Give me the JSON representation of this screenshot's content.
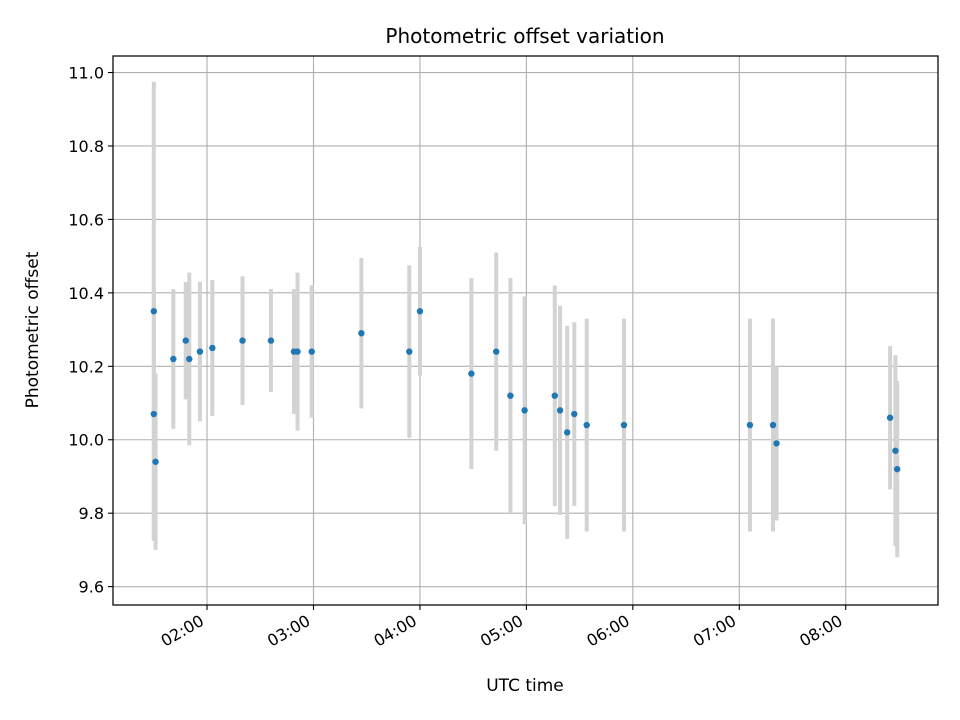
{
  "chart_data": {
    "type": "scatter",
    "title": "Photometric offset variation",
    "xlabel": "UTC time",
    "ylabel": "Photometric offset",
    "xlim": [
      "01:07",
      "08:52"
    ],
    "ylim": [
      9.55,
      11.045
    ],
    "x_ticks": [
      "02:00",
      "03:00",
      "04:00",
      "05:00",
      "06:00",
      "07:00",
      "08:00"
    ],
    "y_ticks": [
      "9.6",
      "9.8",
      "10.0",
      "10.2",
      "10.4",
      "10.6",
      "10.8",
      "11.0"
    ],
    "grid": true,
    "colors": {
      "marker": "#1f77b4",
      "errorbar": "#d3d3d3",
      "grid": "#b0b0b0"
    },
    "points": [
      {
        "x": "01:30",
        "y": 10.35,
        "err": 0.625
      },
      {
        "x": "01:30",
        "y": 10.07,
        "err": 0.345
      },
      {
        "x": "01:31",
        "y": 9.94,
        "err": 0.24
      },
      {
        "x": "01:41",
        "y": 10.22,
        "err": 0.19
      },
      {
        "x": "01:48",
        "y": 10.27,
        "err": 0.16
      },
      {
        "x": "01:50",
        "y": 10.22,
        "err": 0.235
      },
      {
        "x": "01:56",
        "y": 10.24,
        "err": 0.19
      },
      {
        "x": "02:03",
        "y": 10.25,
        "err": 0.185
      },
      {
        "x": "02:20",
        "y": 10.27,
        "err": 0.175
      },
      {
        "x": "02:36",
        "y": 10.27,
        "err": 0.14
      },
      {
        "x": "02:49",
        "y": 10.24,
        "err": 0.17
      },
      {
        "x": "02:51",
        "y": 10.24,
        "err": 0.215
      },
      {
        "x": "02:59",
        "y": 10.24,
        "err": 0.18
      },
      {
        "x": "03:27",
        "y": 10.29,
        "err": 0.205
      },
      {
        "x": "03:54",
        "y": 10.24,
        "err": 0.235
      },
      {
        "x": "04:00",
        "y": 10.35,
        "err": 0.175
      },
      {
        "x": "04:29",
        "y": 10.18,
        "err": 0.26
      },
      {
        "x": "04:43",
        "y": 10.24,
        "err": 0.27
      },
      {
        "x": "04:51",
        "y": 10.12,
        "err": 0.32
      },
      {
        "x": "04:59",
        "y": 10.08,
        "err": 0.31
      },
      {
        "x": "05:16",
        "y": 10.12,
        "err": 0.3
      },
      {
        "x": "05:19",
        "y": 10.08,
        "err": 0.285
      },
      {
        "x": "05:23",
        "y": 10.02,
        "err": 0.29
      },
      {
        "x": "05:27",
        "y": 10.07,
        "err": 0.25
      },
      {
        "x": "05:34",
        "y": 10.04,
        "err": 0.29
      },
      {
        "x": "05:55",
        "y": 10.04,
        "err": 0.29
      },
      {
        "x": "07:06",
        "y": 10.04,
        "err": 0.29
      },
      {
        "x": "07:19",
        "y": 10.04,
        "err": 0.29
      },
      {
        "x": "07:21",
        "y": 9.99,
        "err": 0.21
      },
      {
        "x": "08:25",
        "y": 10.06,
        "err": 0.195
      },
      {
        "x": "08:28",
        "y": 9.97,
        "err": 0.26
      },
      {
        "x": "08:29",
        "y": 9.92,
        "err": 0.24
      }
    ]
  }
}
